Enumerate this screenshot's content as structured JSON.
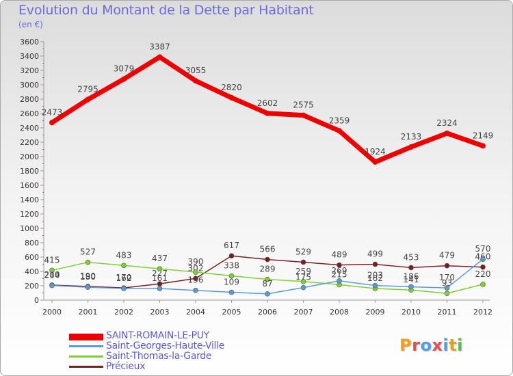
{
  "chart_data": {
    "type": "line",
    "title": "Evolution du Montant de la Dette par Habitant",
    "subtitle": "(en €)",
    "categories": [
      "2000",
      "2001",
      "2002",
      "2003",
      "2004",
      "2005",
      "2006",
      "2007",
      "2008",
      "2009",
      "2010",
      "2011",
      "2012"
    ],
    "ylim": [
      0,
      3600
    ],
    "yticks": [
      0,
      200,
      400,
      600,
      800,
      1000,
      1200,
      1400,
      1600,
      1800,
      2000,
      2200,
      2400,
      2600,
      2800,
      3000,
      3200,
      3400,
      3600
    ],
    "grid": false,
    "legend_position": "bottom-left",
    "series": [
      {
        "name": "SAINT-ROMAIN-LE-PUY",
        "color": "#ee0000",
        "values": [
          2473,
          2795,
          3079,
          3387,
          3055,
          2820,
          2602,
          2575,
          2359,
          1924,
          2133,
          2324,
          2149
        ]
      },
      {
        "name": "Saint-Georges-Haute-Ville",
        "color": "#5b9bd5",
        "values": [
          204,
          180,
          162,
          161,
          136,
          109,
          87,
          175,
          269,
          203,
          186,
          170,
          570
        ]
      },
      {
        "name": "Saint-Thomas-la-Garde",
        "color": "#7fd12f",
        "values": [
          415,
          527,
          483,
          437,
          390,
          338,
          289,
          259,
          215,
          162,
          141,
          93,
          220
        ]
      },
      {
        "name": "Précieux",
        "color": "#7a1f1f",
        "values": [
          210,
          190,
          170,
          227,
          302,
          617,
          566,
          529,
          489,
          499,
          453,
          479,
          460
        ]
      }
    ]
  },
  "logo": {
    "letters": [
      "P",
      "r",
      "o",
      "x",
      "i",
      "t",
      "i"
    ],
    "colors": [
      "#f0a020",
      "#e05050",
      "#50a0e0",
      "#e05050",
      "#50a0e0",
      "#e0a020",
      "#50c050"
    ]
  }
}
